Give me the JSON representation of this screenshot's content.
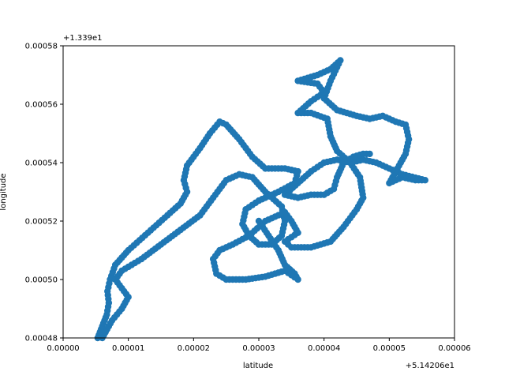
{
  "chart_data": {
    "type": "scatter",
    "title": "",
    "xlabel": "latitude",
    "ylabel": "longitude",
    "xlim": [
      0,
      6e-05
    ],
    "ylim": [
      0.00048,
      0.00058
    ],
    "x_offset_label": "+5.14206e1",
    "y_offset_label": "+1.339e1",
    "x_ticks": [
      "0.00000",
      "0.00001",
      "0.00002",
      "0.00003",
      "0.00004",
      "0.00005",
      "0.00006"
    ],
    "y_ticks": [
      "0.00048",
      "0.00050",
      "0.00052",
      "0.00054",
      "0.00056",
      "0.00058"
    ],
    "grid": false,
    "marker_color": "#1f77b4",
    "path_points": [
      [
        5.3e-06,
        0.00048
      ],
      [
        6e-06,
        0.000484
      ],
      [
        6.7e-06,
        0.000488
      ],
      [
        7e-06,
        0.000492
      ],
      [
        6.8e-06,
        0.000496
      ],
      [
        7.2e-06,
        0.0005
      ],
      [
        8e-06,
        0.000505
      ],
      [
        1e-05,
        0.00051
      ],
      [
        1.3e-05,
        0.000516
      ],
      [
        1.6e-05,
        0.000522
      ],
      [
        1.8e-05,
        0.000526
      ],
      [
        1.9e-05,
        0.00053
      ],
      [
        1.85e-05,
        0.000534
      ],
      [
        1.9e-05,
        0.000539
      ],
      [
        2.1e-05,
        0.000545
      ],
      [
        2.25e-05,
        0.00055
      ],
      [
        2.4e-05,
        0.000554
      ],
      [
        2.5e-05,
        0.000553
      ],
      [
        2.7e-05,
        0.000548
      ],
      [
        2.9e-05,
        0.000542
      ],
      [
        3.1e-05,
        0.000538
      ],
      [
        3.4e-05,
        0.000538
      ],
      [
        3.6e-05,
        0.000537
      ],
      [
        3.55e-05,
        0.000533
      ],
      [
        3.3e-05,
        0.00053
      ],
      [
        3e-05,
        0.000527
      ],
      [
        2.8e-05,
        0.000524
      ],
      [
        2.75e-05,
        0.000519
      ],
      [
        2.85e-05,
        0.000515
      ],
      [
        3e-05,
        0.000512
      ],
      [
        3.2e-05,
        0.000512
      ],
      [
        3.35e-05,
        0.000515
      ],
      [
        3.4e-05,
        0.00052
      ],
      [
        3.35e-05,
        0.000525
      ],
      [
        3.1e-05,
        0.00053
      ],
      [
        2.9e-05,
        0.000535
      ],
      [
        2.7e-05,
        0.000536
      ],
      [
        2.5e-05,
        0.000534
      ],
      [
        2.3e-05,
        0.000528
      ],
      [
        2.1e-05,
        0.000522
      ],
      [
        1.8e-05,
        0.000517
      ],
      [
        1.5e-05,
        0.000512
      ],
      [
        1.2e-05,
        0.000507
      ],
      [
        9e-06,
        0.000503
      ],
      [
        8e-06,
        0.0005
      ],
      [
        9e-06,
        0.000497
      ],
      [
        1e-05,
        0.000494
      ],
      [
        9e-06,
        0.00049
      ],
      [
        7.5e-06,
        0.000486
      ],
      [
        6.5e-06,
        0.000482
      ],
      [
        6e-06,
        0.00048
      ]
    ],
    "path_points_b": [
      [
        3e-05,
        0.00052
      ],
      [
        3.3e-05,
        0.00051
      ],
      [
        3.4e-05,
        0.000505
      ],
      [
        3.55e-05,
        0.000502
      ],
      [
        3.6e-05,
        0.0005
      ],
      [
        3.4e-05,
        0.000503
      ],
      [
        3.1e-05,
        0.000501
      ],
      [
        2.8e-05,
        0.0005
      ],
      [
        2.5e-05,
        0.0005
      ],
      [
        2.35e-05,
        0.000502
      ],
      [
        2.3e-05,
        0.000507
      ],
      [
        2.4e-05,
        0.00051
      ],
      [
        2.6e-05,
        0.000512
      ],
      [
        2.85e-05,
        0.000515
      ],
      [
        3.1e-05,
        0.00052
      ],
      [
        3.4e-05,
        0.000523
      ],
      [
        3.5e-05,
        0.00052
      ],
      [
        3.6e-05,
        0.000516
      ],
      [
        3.4e-05,
        0.000513
      ],
      [
        3.5e-05,
        0.000511
      ],
      [
        3.8e-05,
        0.000511
      ],
      [
        4.1e-05,
        0.000513
      ],
      [
        4.3e-05,
        0.000518
      ],
      [
        4.5e-05,
        0.000524
      ],
      [
        4.6e-05,
        0.000528
      ],
      [
        4.55e-05,
        0.000535
      ],
      [
        4.4e-05,
        0.00054
      ],
      [
        4.2e-05,
        0.000544
      ],
      [
        4.1e-05,
        0.000549
      ],
      [
        4.05e-05,
        0.000555
      ],
      [
        3.8e-05,
        0.000557
      ],
      [
        3.6e-05,
        0.000557
      ],
      [
        3.8e-05,
        0.000561
      ],
      [
        4e-05,
        0.000564
      ],
      [
        3.9e-05,
        0.000567
      ],
      [
        3.6e-05,
        0.000568
      ],
      [
        3.9e-05,
        0.00057
      ],
      [
        4.1e-05,
        0.000572
      ],
      [
        4.25e-05,
        0.000575
      ],
      [
        4.1e-05,
        0.000568
      ],
      [
        4e-05,
        0.000562
      ],
      [
        4.2e-05,
        0.000558
      ],
      [
        4.5e-05,
        0.000556
      ],
      [
        4.7e-05,
        0.000555
      ],
      [
        4.9e-05,
        0.000556
      ],
      [
        5.1e-05,
        0.000554
      ],
      [
        5.25e-05,
        0.000553
      ],
      [
        5.3e-05,
        0.000548
      ],
      [
        5.25e-05,
        0.000543
      ],
      [
        5.1e-05,
        0.000537
      ],
      [
        5e-05,
        0.000533
      ],
      [
        5.2e-05,
        0.000535
      ],
      [
        5.4e-05,
        0.000534
      ],
      [
        5.55e-05,
        0.000534
      ],
      [
        5.2e-05,
        0.000536
      ],
      [
        5e-05,
        0.000538
      ],
      [
        4.8e-05,
        0.00054
      ],
      [
        4.6e-05,
        0.000541
      ],
      [
        4.4e-05,
        0.00054
      ],
      [
        4.2e-05,
        0.000541
      ],
      [
        4e-05,
        0.00054
      ],
      [
        3.8e-05,
        0.000537
      ],
      [
        3.6e-05,
        0.000533
      ],
      [
        3.4e-05,
        0.000529
      ],
      [
        3.6e-05,
        0.000528
      ],
      [
        3.8e-05,
        0.000529
      ],
      [
        4e-05,
        0.000529
      ],
      [
        4.15e-05,
        0.000531
      ],
      [
        4.2e-05,
        0.000535
      ],
      [
        4.3e-05,
        0.00054
      ],
      [
        4.45e-05,
        0.000542
      ],
      [
        4.6e-05,
        0.000543
      ],
      [
        4.7e-05,
        0.000543
      ]
    ]
  }
}
